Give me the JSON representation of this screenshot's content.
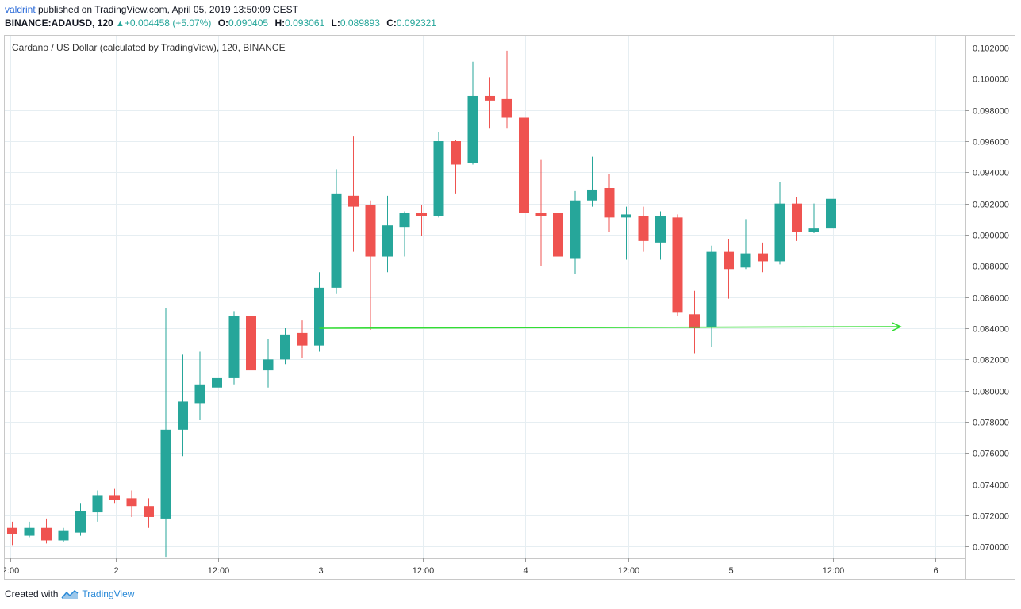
{
  "header": {
    "author": "valdrint",
    "published_text": " published on TradingView.com, April 05, 2019 13:50:09 CEST",
    "symbol": "BINANCE:ADAUSD, 120",
    "change": "+0.004458 (+5.07%)",
    "open_label": "O:",
    "open": "0.090405",
    "high_label": "H:",
    "high": "0.093061",
    "low_label": "L:",
    "low": "0.089893",
    "close_label": "C:",
    "close": "0.092321"
  },
  "chart_title": "Cardano / US Dollar (calculated by TradingView), 120, BINANCE",
  "footer": {
    "created_with": "Created with",
    "brand": "TradingView"
  },
  "colors": {
    "up": "#26a69a",
    "down": "#ef5350",
    "support_line": "#33dd33",
    "grid": "#e6eef2"
  },
  "chart_data": {
    "type": "candlestick",
    "title": "Cardano / US Dollar (calculated by TradingView), 120, BINANCE",
    "y_axis_side": "right",
    "ylim": [
      0.0693,
      0.1028
    ],
    "y_ticks": [
      "0.102000",
      "0.100000",
      "0.098000",
      "0.096000",
      "0.094000",
      "0.092000",
      "0.090000",
      "0.088000",
      "0.086000",
      "0.084000",
      "0.082000",
      "0.080000",
      "0.078000",
      "0.076000",
      "0.074000",
      "0.072000",
      "0.070000"
    ],
    "x_ticks": [
      "2:00",
      "2",
      "12:00",
      "3",
      "12:00",
      "4",
      "12:00",
      "5",
      "12:00",
      "6"
    ],
    "grid": true,
    "candles": [
      {
        "o": 0.0712,
        "h": 0.0716,
        "l": 0.0701,
        "c": 0.0708
      },
      {
        "o": 0.0707,
        "h": 0.0716,
        "l": 0.0706,
        "c": 0.0712
      },
      {
        "o": 0.0712,
        "h": 0.0718,
        "l": 0.0702,
        "c": 0.0704
      },
      {
        "o": 0.0704,
        "h": 0.0712,
        "l": 0.0703,
        "c": 0.071
      },
      {
        "o": 0.0709,
        "h": 0.0728,
        "l": 0.0707,
        "c": 0.0723
      },
      {
        "o": 0.0722,
        "h": 0.0736,
        "l": 0.0716,
        "c": 0.0733
      },
      {
        "o": 0.0733,
        "h": 0.0737,
        "l": 0.0728,
        "c": 0.073
      },
      {
        "o": 0.0731,
        "h": 0.0736,
        "l": 0.0719,
        "c": 0.0726
      },
      {
        "o": 0.0726,
        "h": 0.0731,
        "l": 0.0712,
        "c": 0.0719
      },
      {
        "o": 0.0718,
        "h": 0.0853,
        "l": 0.0693,
        "c": 0.0775
      },
      {
        "o": 0.0775,
        "h": 0.0823,
        "l": 0.0758,
        "c": 0.0793
      },
      {
        "o": 0.0792,
        "h": 0.0825,
        "l": 0.0781,
        "c": 0.0804
      },
      {
        "o": 0.0802,
        "h": 0.0816,
        "l": 0.0793,
        "c": 0.0808
      },
      {
        "o": 0.0808,
        "h": 0.0851,
        "l": 0.0804,
        "c": 0.0848
      },
      {
        "o": 0.0848,
        "h": 0.0849,
        "l": 0.0798,
        "c": 0.0813
      },
      {
        "o": 0.0813,
        "h": 0.0833,
        "l": 0.0802,
        "c": 0.082
      },
      {
        "o": 0.082,
        "h": 0.084,
        "l": 0.0817,
        "c": 0.0836
      },
      {
        "o": 0.0837,
        "h": 0.0845,
        "l": 0.0821,
        "c": 0.0829
      },
      {
        "o": 0.0829,
        "h": 0.0876,
        "l": 0.0825,
        "c": 0.0866
      },
      {
        "o": 0.0866,
        "h": 0.0942,
        "l": 0.0862,
        "c": 0.0926
      },
      {
        "o": 0.0925,
        "h": 0.0963,
        "l": 0.0889,
        "c": 0.0918
      },
      {
        "o": 0.0919,
        "h": 0.0922,
        "l": 0.0839,
        "c": 0.0886
      },
      {
        "o": 0.0886,
        "h": 0.0925,
        "l": 0.0876,
        "c": 0.0906
      },
      {
        "o": 0.0905,
        "h": 0.0915,
        "l": 0.0886,
        "c": 0.0914
      },
      {
        "o": 0.0914,
        "h": 0.0919,
        "l": 0.0899,
        "c": 0.0912
      },
      {
        "o": 0.0912,
        "h": 0.0966,
        "l": 0.0911,
        "c": 0.096
      },
      {
        "o": 0.096,
        "h": 0.0961,
        "l": 0.0926,
        "c": 0.0945
      },
      {
        "o": 0.0946,
        "h": 0.1011,
        "l": 0.0945,
        "c": 0.0989
      },
      {
        "o": 0.0989,
        "h": 0.1001,
        "l": 0.0968,
        "c": 0.0986
      },
      {
        "o": 0.0987,
        "h": 0.1018,
        "l": 0.0968,
        "c": 0.0975
      },
      {
        "o": 0.0975,
        "h": 0.0991,
        "l": 0.0848,
        "c": 0.0914
      },
      {
        "o": 0.0914,
        "h": 0.0948,
        "l": 0.088,
        "c": 0.0912
      },
      {
        "o": 0.0914,
        "h": 0.093,
        "l": 0.0881,
        "c": 0.0886
      },
      {
        "o": 0.0885,
        "h": 0.0928,
        "l": 0.0875,
        "c": 0.0922
      },
      {
        "o": 0.0922,
        "h": 0.095,
        "l": 0.0918,
        "c": 0.0929
      },
      {
        "o": 0.093,
        "h": 0.0939,
        "l": 0.0902,
        "c": 0.0911
      },
      {
        "o": 0.0911,
        "h": 0.0918,
        "l": 0.0884,
        "c": 0.0913
      },
      {
        "o": 0.0912,
        "h": 0.0918,
        "l": 0.0889,
        "c": 0.0896
      },
      {
        "o": 0.0895,
        "h": 0.0915,
        "l": 0.0884,
        "c": 0.0912
      },
      {
        "o": 0.0911,
        "h": 0.0913,
        "l": 0.0848,
        "c": 0.085
      },
      {
        "o": 0.0849,
        "h": 0.0864,
        "l": 0.0824,
        "c": 0.084
      },
      {
        "o": 0.0841,
        "h": 0.0893,
        "l": 0.0828,
        "c": 0.0889
      },
      {
        "o": 0.0889,
        "h": 0.0897,
        "l": 0.0859,
        "c": 0.0878
      },
      {
        "o": 0.0879,
        "h": 0.091,
        "l": 0.0878,
        "c": 0.0888
      },
      {
        "o": 0.0888,
        "h": 0.0895,
        "l": 0.0876,
        "c": 0.0883
      },
      {
        "o": 0.0883,
        "h": 0.0934,
        "l": 0.0881,
        "c": 0.092
      },
      {
        "o": 0.092,
        "h": 0.0924,
        "l": 0.0896,
        "c": 0.0902
      },
      {
        "o": 0.0902,
        "h": 0.092,
        "l": 0.0901,
        "c": 0.0904
      },
      {
        "o": 0.0904,
        "h": 0.0931,
        "l": 0.09,
        "c": 0.0923
      }
    ],
    "support_line": {
      "y_start": 0.084,
      "y_end": 0.0841,
      "start_candle": 18
    }
  }
}
